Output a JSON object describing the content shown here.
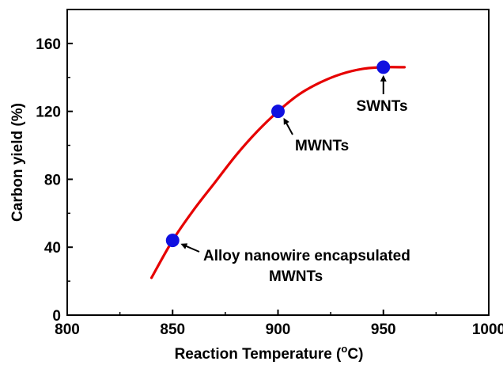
{
  "chart_data": {
    "type": "line",
    "title": "",
    "xlabel": "Reaction Temperature (",
    "xlabel_unit_sup": "o",
    "xlabel_unit": "C)",
    "ylabel": "Carbon yield (%)",
    "xlim": [
      800,
      1000
    ],
    "ylim": [
      0,
      180
    ],
    "x_ticks": [
      800,
      850,
      900,
      950,
      1000
    ],
    "y_ticks": [
      0,
      40,
      80,
      120,
      160
    ],
    "grid": false,
    "series": [
      {
        "type": "line",
        "color": "#e60000",
        "x": [
          840,
          850,
          860,
          870,
          880,
          890,
          900,
          910,
          920,
          930,
          940,
          950,
          960
        ],
        "y": [
          22,
          44,
          62,
          78,
          94,
          108,
          120,
          130,
          137,
          142,
          145,
          146,
          146
        ]
      },
      {
        "type": "scatter",
        "color": "#1010e0",
        "x": [
          850,
          900,
          950
        ],
        "y": [
          44,
          120,
          146
        ]
      }
    ],
    "annotations": [
      {
        "lines": [
          "Alloy nanowire encapsulated",
          "MWNTs"
        ],
        "target": [
          850,
          44
        ]
      },
      {
        "lines": [
          "MWNTs"
        ],
        "target": [
          900,
          120
        ]
      },
      {
        "lines": [
          "SWNTs"
        ],
        "target": [
          950,
          146
        ]
      }
    ]
  }
}
